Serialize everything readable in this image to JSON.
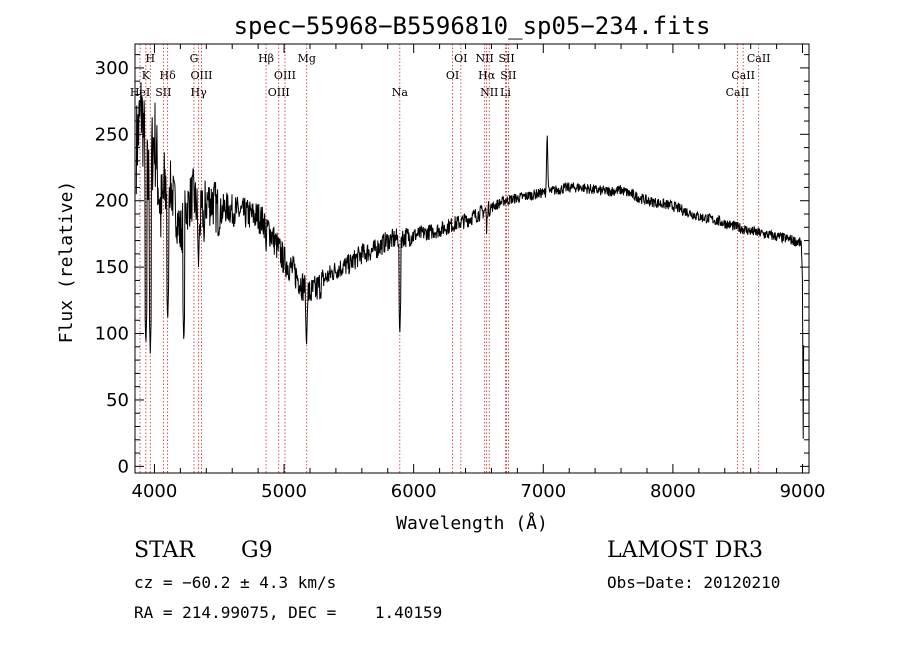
{
  "chart_data": {
    "type": "line",
    "title": "spec−55968−B5596810_sp05−234.fits",
    "xlabel": "Wavelength (Å)",
    "ylabel": "Flux (relative)",
    "xlim": [
      3850,
      9050
    ],
    "ylim": [
      -5,
      318
    ],
    "x_ticks": [
      4000,
      5000,
      6000,
      7000,
      8000,
      9000
    ],
    "x_tick_labels": [
      "4000",
      "5000",
      "6000",
      "7000",
      "8000",
      "9000"
    ],
    "y_ticks": [
      0,
      50,
      100,
      150,
      200,
      250,
      300
    ],
    "y_tick_labels": [
      "0",
      "50",
      "100",
      "150",
      "200",
      "250",
      "300"
    ],
    "line_color": "#d22222",
    "spectrum_color": "#000000",
    "spectrum_anchors": [
      [
        3860,
        240
      ],
      [
        3900,
        270
      ],
      [
        3950,
        210
      ],
      [
        4000,
        250
      ],
      [
        4050,
        190
      ],
      [
        4100,
        220
      ],
      [
        4150,
        200
      ],
      [
        4200,
        175
      ],
      [
        4250,
        195
      ],
      [
        4300,
        205
      ],
      [
        4350,
        185
      ],
      [
        4400,
        200
      ],
      [
        4450,
        200
      ],
      [
        4500,
        190
      ],
      [
        4550,
        195
      ],
      [
        4600,
        193
      ],
      [
        4700,
        190
      ],
      [
        4800,
        188
      ],
      [
        4850,
        183
      ],
      [
        4900,
        175
      ],
      [
        4950,
        165
      ],
      [
        5000,
        155
      ],
      [
        5050,
        150
      ],
      [
        5100,
        143
      ],
      [
        5150,
        135
      ],
      [
        5200,
        130
      ],
      [
        5250,
        133
      ],
      [
        5300,
        140
      ],
      [
        5400,
        148
      ],
      [
        5500,
        152
      ],
      [
        5600,
        160
      ],
      [
        5700,
        163
      ],
      [
        5800,
        170
      ],
      [
        5900,
        172
      ],
      [
        6000,
        174
      ],
      [
        6100,
        176
      ],
      [
        6200,
        178
      ],
      [
        6300,
        182
      ],
      [
        6400,
        185
      ],
      [
        6500,
        190
      ],
      [
        6600,
        195
      ],
      [
        6700,
        200
      ],
      [
        6800,
        202
      ],
      [
        6900,
        204
      ],
      [
        7000,
        206
      ],
      [
        7100,
        208
      ],
      [
        7200,
        210
      ],
      [
        7300,
        210
      ],
      [
        7400,
        208
      ],
      [
        7500,
        207
      ],
      [
        7600,
        208
      ],
      [
        7700,
        204
      ],
      [
        7800,
        200
      ],
      [
        7900,
        198
      ],
      [
        8000,
        196
      ],
      [
        8100,
        192
      ],
      [
        8200,
        188
      ],
      [
        8300,
        186
      ],
      [
        8400,
        183
      ],
      [
        8500,
        180
      ],
      [
        8600,
        177
      ],
      [
        8700,
        175
      ],
      [
        8800,
        173
      ],
      [
        8900,
        171
      ],
      [
        8990,
        168
      ],
      [
        9000,
        135
      ],
      [
        9005,
        20
      ],
      [
        9010,
        140
      ]
    ],
    "absorption_features": [
      [
        3934,
        90
      ],
      [
        3968,
        85
      ],
      [
        4102,
        108
      ],
      [
        4227,
        92
      ],
      [
        4340,
        150
      ],
      [
        4383,
        165
      ],
      [
        4861,
        158
      ],
      [
        5173,
        88
      ],
      [
        5893,
        97
      ],
      [
        6563,
        175
      ]
    ],
    "emission_features": [
      [
        7030,
        254
      ]
    ],
    "lines": [
      {
        "label": "HeI",
        "wavelength": 3889,
        "row": 3
      },
      {
        "label": "K",
        "wavelength": 3934,
        "row": 2
      },
      {
        "label": "H",
        "wavelength": 3968,
        "row": 1
      },
      {
        "label": "SII",
        "wavelength": 4069,
        "row": 3
      },
      {
        "label": "Hδ",
        "wavelength": 4102,
        "row": 2
      },
      {
        "label": "G",
        "wavelength": 4305,
        "row": 1
      },
      {
        "label": "OIII",
        "wavelength": 4363,
        "row": 2
      },
      {
        "label": "Hγ",
        "wavelength": 4341,
        "row": 3
      },
      {
        "label": "Hβ",
        "wavelength": 4861,
        "row": 1
      },
      {
        "label": "OIII",
        "wavelength": 5007,
        "row": 2
      },
      {
        "label": "OIII",
        "wavelength": 4959,
        "row": 3
      },
      {
        "label": "Mg",
        "wavelength": 5175,
        "row": 1
      },
      {
        "label": "Na",
        "wavelength": 5893,
        "row": 3
      },
      {
        "label": "OI",
        "wavelength": 6364,
        "row": 1
      },
      {
        "label": "OI",
        "wavelength": 6300,
        "row": 2
      },
      {
        "label": "NII",
        "wavelength": 6548,
        "row": 1
      },
      {
        "label": "Hα",
        "wavelength": 6563,
        "row": 2
      },
      {
        "label": "NII",
        "wavelength": 6583,
        "row": 3
      },
      {
        "label": "SII",
        "wavelength": 6717,
        "row": 1
      },
      {
        "label": "SII",
        "wavelength": 6731,
        "row": 2
      },
      {
        "label": "Li",
        "wavelength": 6708,
        "row": 3
      },
      {
        "label": "CaII",
        "wavelength": 8662,
        "row": 1
      },
      {
        "label": "CaII",
        "wavelength": 8542,
        "row": 2
      },
      {
        "label": "CaII",
        "wavelength": 8498,
        "row": 3
      }
    ]
  },
  "info": {
    "object_class": "STAR",
    "subclass": "G9",
    "survey": "LAMOST DR3",
    "cz": "cz = −60.2 ± 4.3 km/s",
    "obs_date": "Obs−Date: 20120210",
    "coords": "RA = 214.99075, DEC =    1.40159"
  }
}
